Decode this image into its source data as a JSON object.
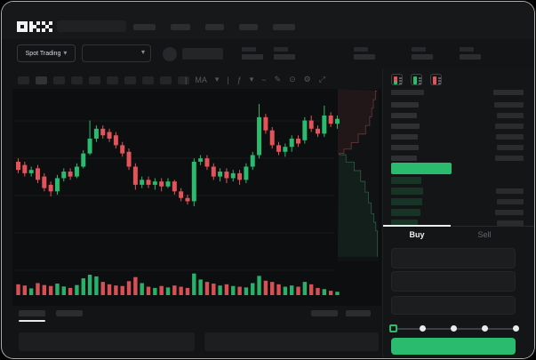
{
  "app": {
    "name": "OKX"
  },
  "colors": {
    "green": "#2abb6e",
    "red": "#e25459",
    "bid_fill": "#173426",
    "ask_line": "#6b3a3c",
    "bid_line": "#2d5c48"
  },
  "header": {
    "logo": "OKX",
    "nav_placeholder_widths": [
      25,
      22,
      21,
      21,
      25
    ]
  },
  "trading_controls": {
    "market_selector_label": "Spot Trading",
    "chevron_glyph": "▾"
  },
  "ticker_stats_placeholder_count": 5,
  "chart_toolbar": {
    "interval_placeholder_count": 10,
    "active_interval_index": 1,
    "icons": [
      {
        "glyph": "|",
        "name": "toolbar-divider",
        "interactable": false
      },
      {
        "glyph": "MA",
        "name": "indicator-label",
        "interactable": true
      },
      {
        "glyph": "▾",
        "name": "chevron-down-icon",
        "interactable": true
      },
      {
        "glyph": "|",
        "name": "toolbar-divider",
        "interactable": false
      },
      {
        "glyph": "ƒ",
        "name": "overlay-label",
        "interactable": true
      },
      {
        "glyph": "▾",
        "name": "chevron-down-icon",
        "interactable": true
      },
      {
        "glyph": "~",
        "name": "line-style-icon",
        "interactable": true
      },
      {
        "glyph": "✎",
        "name": "draw-icon",
        "interactable": true
      },
      {
        "glyph": "⊙",
        "name": "camera-icon",
        "interactable": true
      },
      {
        "glyph": "⚙",
        "name": "settings-icon",
        "interactable": true
      },
      {
        "glyph": "⤢",
        "name": "fullscreen-icon",
        "interactable": true
      }
    ]
  },
  "orderbook": {
    "view_modes": [
      "both",
      "bids-only",
      "asks-only"
    ],
    "header_placeholder_widths": [
      37,
      34
    ],
    "asks": [
      {
        "p": 31,
        "a": 33
      },
      {
        "p": 29,
        "a": 30
      },
      {
        "p": 32,
        "a": 32
      },
      {
        "p": 30,
        "a": 31
      },
      {
        "p": 31,
        "a": 30
      },
      {
        "p": 29,
        "a": 32
      }
    ],
    "last_price_bar_width": 68,
    "bids": [
      {
        "p": 34,
        "a": 0
      },
      {
        "p": 36,
        "a": 31
      },
      {
        "p": 35,
        "a": 30
      },
      {
        "p": 33,
        "a": 32
      },
      {
        "p": 30,
        "a": 30
      }
    ]
  },
  "trade_panel": {
    "tabs": [
      {
        "label": "Buy",
        "active": true
      },
      {
        "label": "Sell",
        "active": false
      }
    ],
    "input_placeholder_count": 3,
    "slider_stop_count": 5,
    "slider_value_index": 0
  },
  "chart_data": {
    "type": "candlestick",
    "title": "",
    "ylim": [
      0,
      100
    ],
    "grid": true,
    "candles_ohlc": [
      [
        58,
        60,
        51,
        53
      ],
      [
        56,
        58,
        49,
        51
      ],
      [
        51,
        55,
        49,
        53
      ],
      [
        54,
        56,
        45,
        47
      ],
      [
        49,
        51,
        40,
        42
      ],
      [
        44,
        46,
        37,
        40
      ],
      [
        40,
        50,
        38,
        48
      ],
      [
        48,
        54,
        46,
        52
      ],
      [
        52,
        54,
        47,
        49
      ],
      [
        49,
        57,
        48,
        55
      ],
      [
        55,
        65,
        54,
        63
      ],
      [
        63,
        83,
        62,
        72
      ],
      [
        72,
        80,
        70,
        78
      ],
      [
        78,
        80,
        72,
        74
      ],
      [
        76,
        78,
        70,
        72
      ],
      [
        74,
        76,
        66,
        68
      ],
      [
        68,
        70,
        61,
        63
      ],
      [
        64,
        66,
        53,
        55
      ],
      [
        55,
        57,
        41,
        44
      ],
      [
        44,
        49,
        42,
        47
      ],
      [
        47,
        49,
        42,
        44
      ],
      [
        44,
        48,
        41,
        46
      ],
      [
        46,
        48,
        40,
        43
      ],
      [
        43,
        48,
        42,
        46
      ],
      [
        46,
        47,
        38,
        40
      ],
      [
        40,
        42,
        34,
        36
      ],
      [
        36,
        38,
        32,
        34
      ],
      [
        34,
        60,
        31,
        58
      ],
      [
        58,
        62,
        56,
        60
      ],
      [
        60,
        62,
        53,
        55
      ],
      [
        55,
        57,
        47,
        49
      ],
      [
        49,
        54,
        46,
        52
      ],
      [
        52,
        54,
        45,
        48
      ],
      [
        48,
        53,
        46,
        51
      ],
      [
        51,
        53,
        44,
        47
      ],
      [
        47,
        57,
        45,
        55
      ],
      [
        55,
        64,
        53,
        62
      ],
      [
        62,
        93,
        60,
        85
      ],
      [
        85,
        87,
        75,
        77
      ],
      [
        77,
        79,
        66,
        68
      ],
      [
        68,
        70,
        62,
        64
      ],
      [
        64,
        69,
        61,
        67
      ],
      [
        67,
        74,
        64,
        72
      ],
      [
        72,
        74,
        67,
        69
      ],
      [
        71,
        85,
        69,
        83
      ],
      [
        83,
        86,
        76,
        78
      ],
      [
        78,
        80,
        73,
        75
      ],
      [
        75,
        92,
        73,
        86
      ],
      [
        86,
        88,
        79,
        81
      ],
      [
        81,
        86,
        78,
        84
      ]
    ],
    "volume": [
      45,
      40,
      28,
      50,
      42,
      38,
      48,
      36,
      30,
      42,
      70,
      85,
      78,
      55,
      45,
      40,
      38,
      58,
      75,
      50,
      35,
      30,
      38,
      32,
      40,
      35,
      30,
      90,
      65,
      55,
      48,
      40,
      45,
      38,
      35,
      32,
      50,
      80,
      60,
      55,
      45,
      35,
      40,
      35,
      55,
      45,
      30,
      25,
      18,
      14
    ],
    "depth_sidebar": {
      "asks": [
        [
          0.96,
          0.01
        ],
        [
          0.92,
          0.05
        ],
        [
          0.87,
          0.09
        ],
        [
          0.83,
          0.13
        ],
        [
          0.78,
          0.17
        ],
        [
          0.68,
          0.21
        ],
        [
          0.5,
          0.25
        ],
        [
          0.33,
          0.28
        ],
        [
          0.15,
          0.3
        ],
        [
          0.03,
          0.306
        ]
      ],
      "bids": [
        [
          0.03,
          0.306
        ],
        [
          0.2,
          0.34
        ],
        [
          0.4,
          0.38
        ],
        [
          0.56,
          0.43
        ],
        [
          0.67,
          0.48
        ],
        [
          0.75,
          0.53
        ],
        [
          0.82,
          0.58
        ],
        [
          0.88,
          0.62
        ],
        [
          0.93,
          0.66
        ],
        [
          0.97,
          0.78
        ]
      ]
    }
  },
  "bottom_bar": {
    "tab_placeholder_count": 2,
    "right_placeholder_count": 2,
    "panel_placeholder_count": 2
  }
}
